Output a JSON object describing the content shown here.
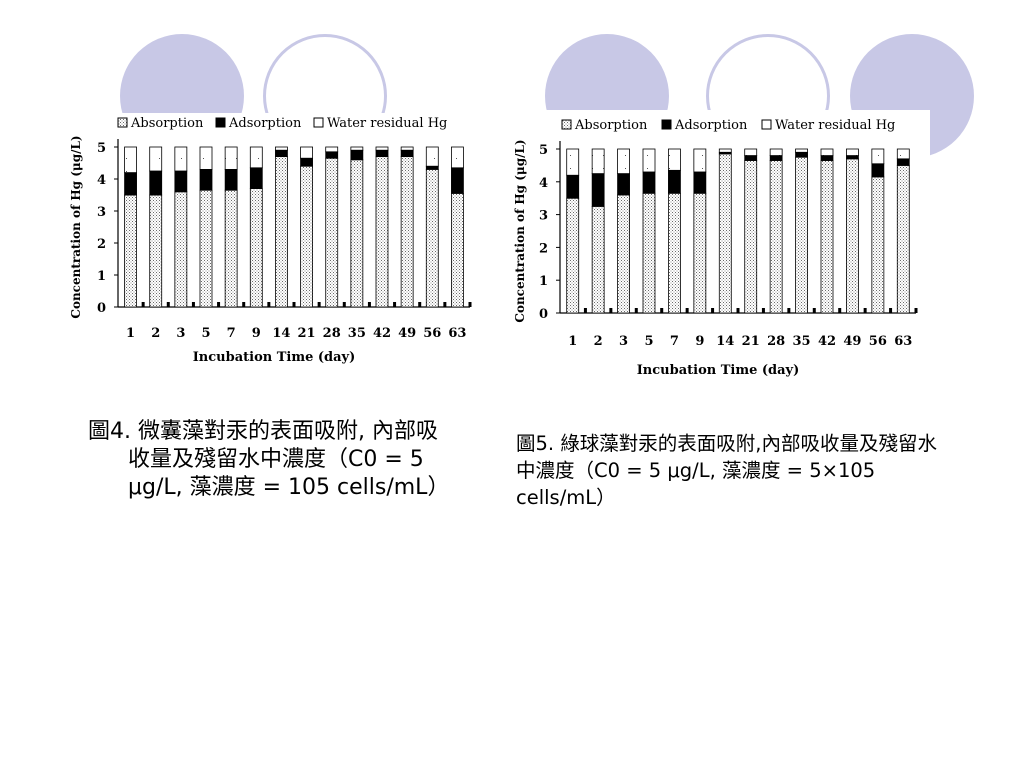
{
  "slide": {
    "caption_left": "圖4. 微囊藻對汞的表面吸附, 內部吸收量及殘留水中濃度（C0 = 5 μg/L, 藻濃度 = 105 cells/mL）",
    "caption_right": "圖5. 綠球藻對汞的表面吸附,內部吸收量及殘留水中濃度（C0 = 5 μg/L, 藻濃度 = 5×105 cells/mL）"
  },
  "colors": {
    "decoration": "#c8c8e6",
    "adsorption": "#000000",
    "water_residual": "#ffffff"
  },
  "chart_data": [
    {
      "type": "bar",
      "stacked": true,
      "legend": [
        "Absorption",
        "Adsorption",
        "Water residual Hg"
      ],
      "legend_position": "top",
      "xlabel": "Incubation Time (day)",
      "ylabel": "Concentration of Hg (μg/L)",
      "ylim": [
        0,
        5
      ],
      "yticks": [
        "0",
        "1",
        "2",
        "3",
        "4",
        "5"
      ],
      "categories": [
        "1",
        "2",
        "3",
        "5",
        "7",
        "9",
        "14",
        "21",
        "28",
        "35",
        "42",
        "49",
        "56",
        "63"
      ],
      "series": [
        {
          "name": "Absorption",
          "values": [
            3.5,
            3.5,
            3.6,
            3.65,
            3.65,
            3.7,
            4.7,
            4.4,
            4.65,
            4.6,
            4.7,
            4.7,
            4.3,
            3.55
          ]
        },
        {
          "name": "Adsorption",
          "values": [
            0.7,
            0.75,
            0.65,
            0.65,
            0.65,
            0.65,
            0.2,
            0.25,
            0.2,
            0.3,
            0.2,
            0.2,
            0.1,
            0.8
          ]
        },
        {
          "name": "Water residual Hg",
          "values": [
            0.8,
            0.75,
            0.75,
            0.7,
            0.7,
            0.65,
            0.1,
            0.35,
            0.15,
            0.1,
            0.1,
            0.1,
            0.6,
            0.65
          ]
        }
      ]
    },
    {
      "type": "bar",
      "stacked": true,
      "legend": [
        "Absorption",
        "Adsorption",
        "Water residual Hg"
      ],
      "legend_position": "top",
      "xlabel": "Incubation Time (day)",
      "ylabel": "Concentration of Hg (μg/L)",
      "ylim": [
        0,
        5
      ],
      "yticks": [
        "0",
        "1",
        "2",
        "3",
        "4",
        "5"
      ],
      "categories": [
        "1",
        "2",
        "3",
        "5",
        "7",
        "9",
        "14",
        "21",
        "28",
        "35",
        "42",
        "49",
        "56",
        "63"
      ],
      "series": [
        {
          "name": "Absorption",
          "values": [
            3.5,
            3.25,
            3.6,
            3.65,
            3.65,
            3.65,
            4.85,
            4.65,
            4.65,
            4.75,
            4.65,
            4.7,
            4.15,
            4.5
          ]
        },
        {
          "name": "Adsorption",
          "values": [
            0.7,
            1.0,
            0.65,
            0.65,
            0.7,
            0.65,
            0.05,
            0.15,
            0.15,
            0.15,
            0.15,
            0.1,
            0.4,
            0.2
          ]
        },
        {
          "name": "Water residual Hg",
          "values": [
            0.8,
            0.75,
            0.75,
            0.7,
            0.65,
            0.7,
            0.1,
            0.2,
            0.2,
            0.1,
            0.2,
            0.2,
            0.45,
            0.3
          ]
        }
      ]
    }
  ]
}
